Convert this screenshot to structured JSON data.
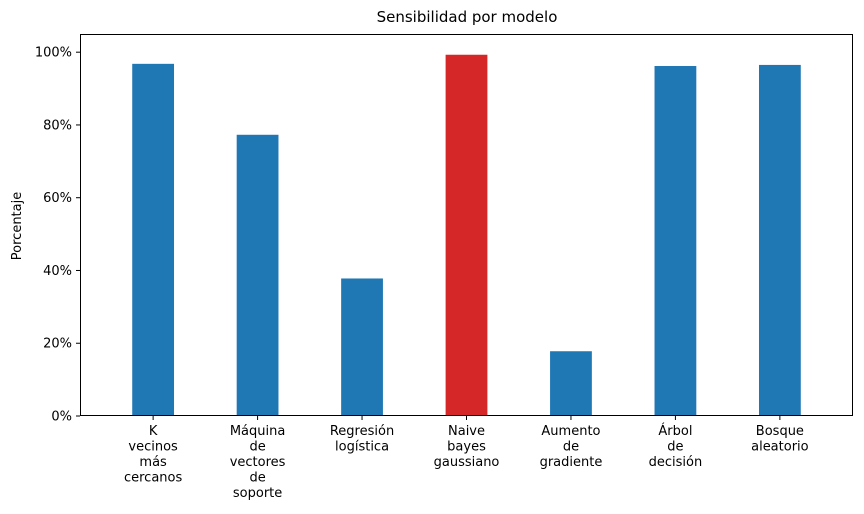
{
  "chart_data": {
    "type": "bar",
    "title": "Sensibilidad por modelo",
    "xlabel": "",
    "ylabel": "Porcentaje",
    "ylim": [
      0,
      1.0
    ],
    "yticks": [
      0,
      0.2,
      0.4,
      0.6,
      0.8,
      1.0
    ],
    "ytick_labels": [
      "0%",
      "20%",
      "40%",
      "60%",
      "80%",
      "100%"
    ],
    "grid": false,
    "categories": [
      "K\nvecinos\nmás\ncercanos",
      "Máquina\nde\nvectores\nde\nsoporte",
      "Regresión\nlogística",
      "Naive\nbayes\ngaussiano",
      "Aumento\nde\ngradiente",
      "Árbol\nde\ndecisión",
      "Bosque\naleatorio"
    ],
    "values": [
      0.968,
      0.773,
      0.378,
      0.993,
      0.178,
      0.962,
      0.965
    ],
    "highlight_index": 3,
    "colors": {
      "default": "#1f77b4",
      "highlight": "#d62728"
    }
  }
}
